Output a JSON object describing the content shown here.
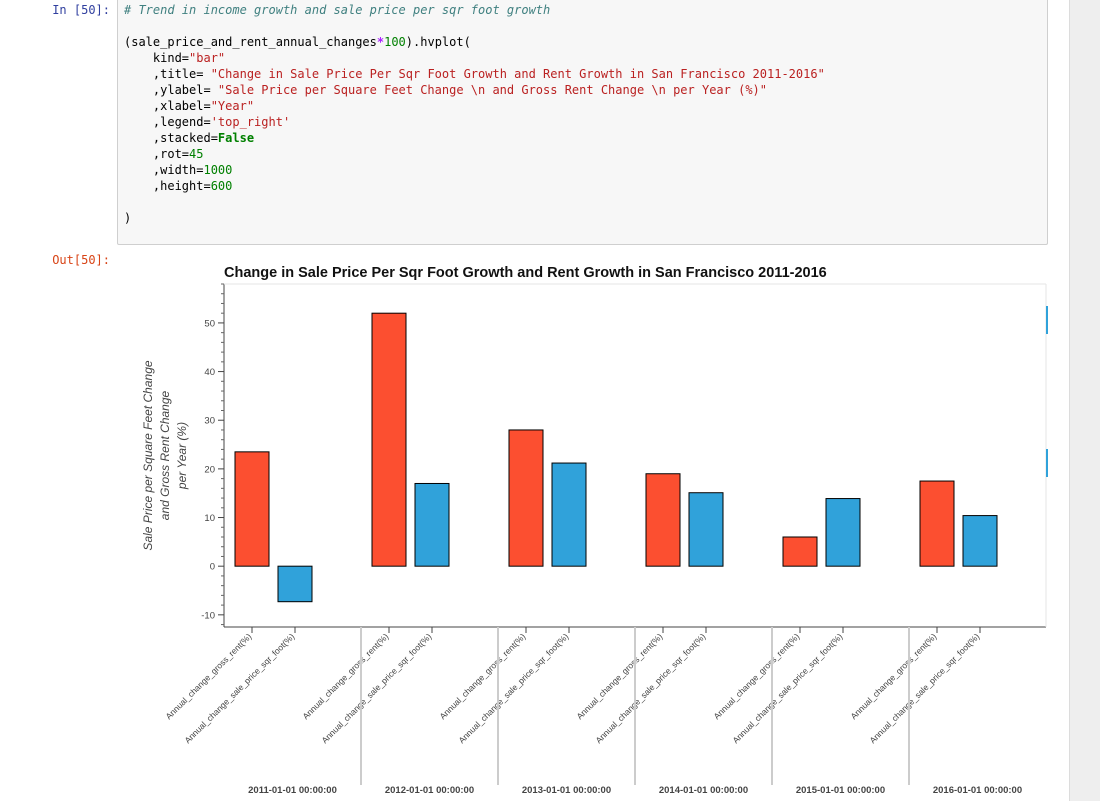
{
  "cell": {
    "in_prompt": "In [50]:",
    "out_prompt": "Out[50]:",
    "code_lines": [
      {
        "t": "comment",
        "s": "# Trend in income growth and sale price per sqr foot growth"
      },
      {
        "t": "blank"
      },
      {
        "t": "plain",
        "s": "(sale_price_and_rent_annual_changes",
        "op": "*",
        "num": "100",
        "rest": ").hvplot("
      },
      {
        "t": "kv",
        "k": "    kind=",
        "v": "\"bar\"",
        "vt": "str"
      },
      {
        "t": "kv",
        "k": "    ,title= ",
        "v": "\"Change in Sale Price Per Sqr Foot Growth and Rent Growth in San Francisco 2011-2016\"",
        "vt": "str"
      },
      {
        "t": "kv",
        "k": "    ,ylabel= ",
        "v": "\"Sale Price per Square Feet Change \\n and Gross Rent Change \\n per Year (%)\"",
        "vt": "str"
      },
      {
        "t": "kv",
        "k": "    ,xlabel=",
        "v": "\"Year\"",
        "vt": "str"
      },
      {
        "t": "kv",
        "k": "    ,legend=",
        "v": "'top_right'",
        "vt": "str"
      },
      {
        "t": "kv",
        "k": "    ,stacked=",
        "v": "False",
        "vt": "kw"
      },
      {
        "t": "kv",
        "k": "    ,rot=",
        "v": "45",
        "vt": "num"
      },
      {
        "t": "kv",
        "k": "    ,width=",
        "v": "1000",
        "vt": "num"
      },
      {
        "t": "kv",
        "k": "    ,height=",
        "v": "600",
        "vt": "num"
      },
      {
        "t": "blank"
      },
      {
        "t": "plain",
        "s": ")"
      }
    ]
  },
  "chart_data": {
    "type": "bar",
    "title": "Change in Sale Price Per Sqr Foot Growth and Rent Growth in San Francisco 2011-2016",
    "ylabel_lines": [
      "Sale Price per Square Feet Change",
      "and Gross Rent Change",
      "per Year (%)"
    ],
    "categories": [
      "2011-01-01 00:00:00",
      "2012-01-01 00:00:00",
      "2013-01-01 00:00:00",
      "2014-01-01 00:00:00",
      "2015-01-01 00:00:00",
      "2016-01-01 00:00:00"
    ],
    "series": [
      {
        "name": "Annual_change_gross_rent(%)",
        "color": "#fc4f30",
        "values": [
          23.5,
          52,
          28,
          19,
          6,
          17.5
        ]
      },
      {
        "name": "Annual_change_sale_price_sqr_foot(%)",
        "color": "#30a2da",
        "values": [
          -7.3,
          17,
          21.2,
          15.1,
          13.9,
          10.4
        ]
      }
    ],
    "yticks": [
      -10,
      0,
      10,
      20,
      30,
      40,
      50
    ],
    "ylim": [
      -12.5,
      58
    ],
    "grid": false,
    "legend": "top-right"
  }
}
